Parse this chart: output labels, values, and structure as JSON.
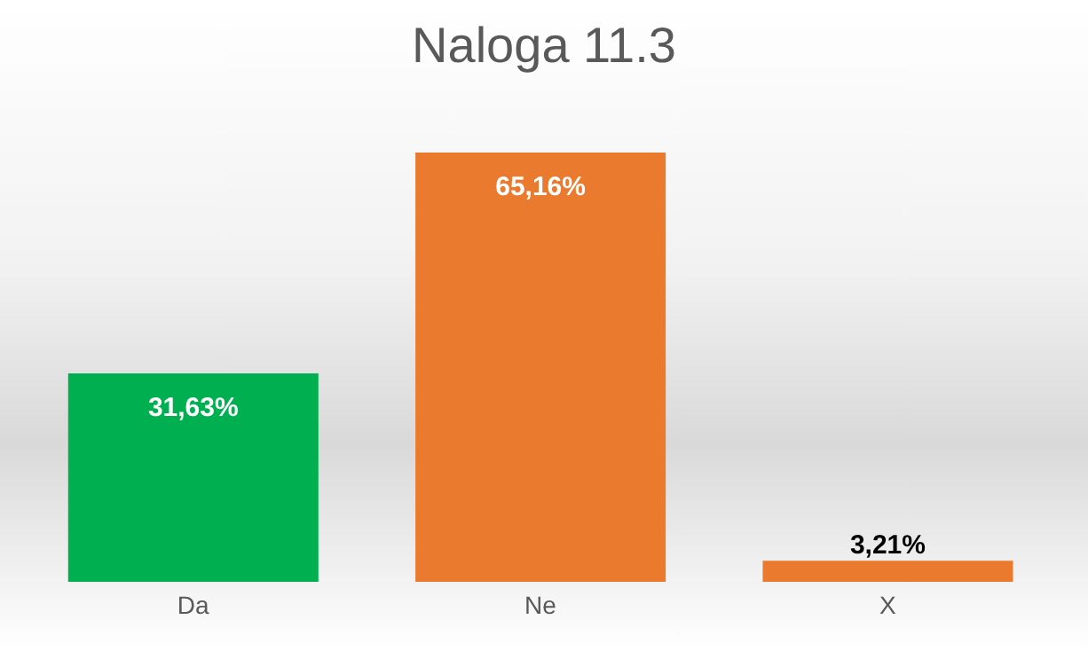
{
  "chart_data": {
    "type": "bar",
    "title": "Naloga 11.3",
    "categories": [
      "Da",
      "Ne",
      "X"
    ],
    "values": [
      31.63,
      65.16,
      3.21
    ],
    "colors": [
      "#00b050",
      "#ea7a2e",
      "#ea7a2e"
    ],
    "value_labels": [
      "31,63%",
      "65,16%",
      "3,21%"
    ],
    "grid": false,
    "legend": false
  }
}
